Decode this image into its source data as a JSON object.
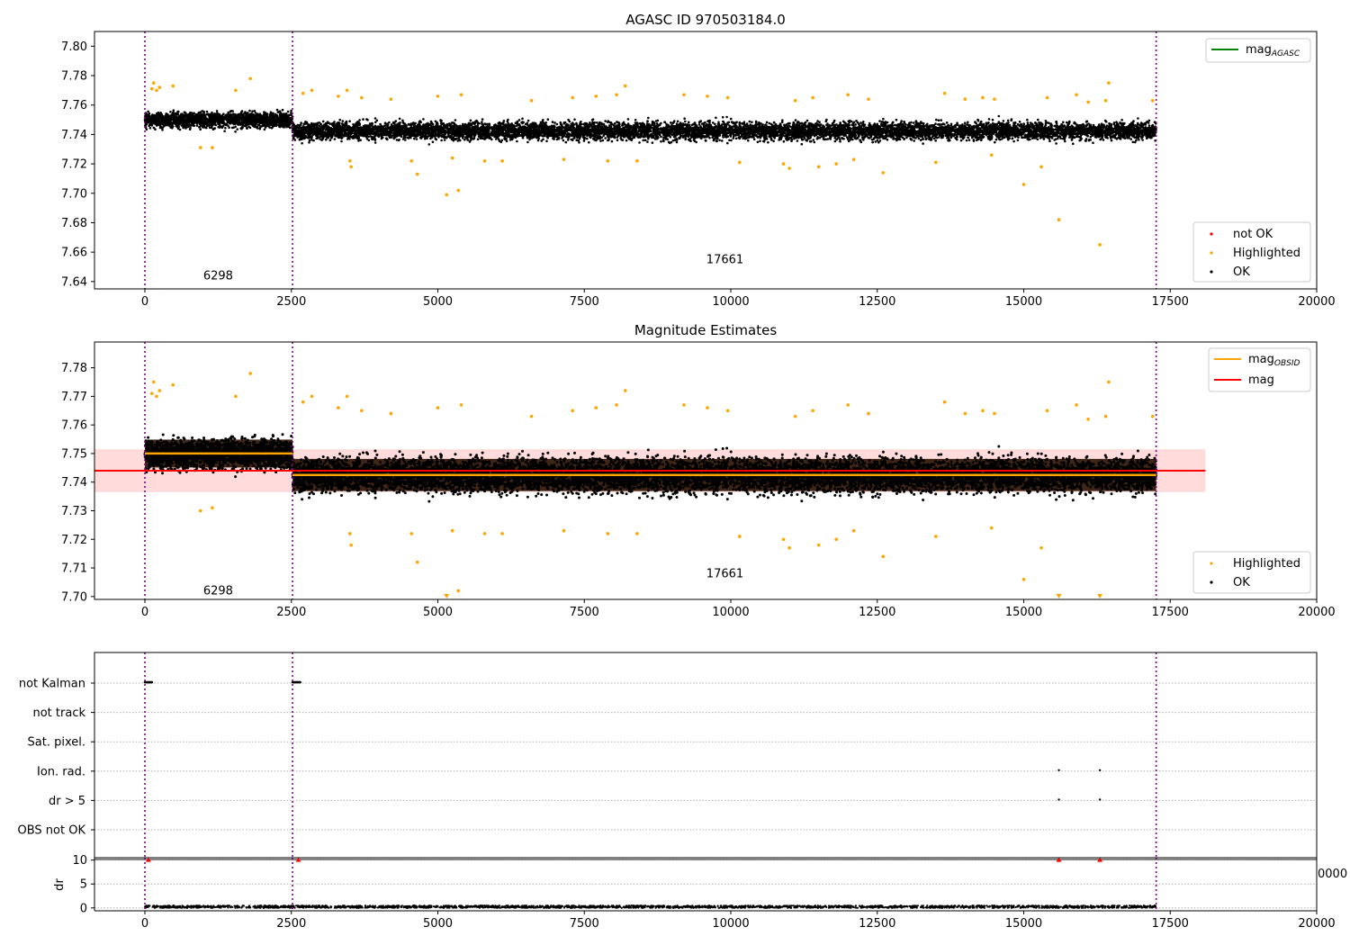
{
  "chart_data": [
    {
      "type": "scatter",
      "title": "AGASC ID 970503184.0",
      "xlim": [
        -860,
        20000
      ],
      "ylim": [
        7.635,
        7.81
      ],
      "xticks": [
        0,
        2500,
        5000,
        7500,
        10000,
        12500,
        15000,
        17500,
        20000
      ],
      "xtick_labels": [
        "0",
        "2500",
        "5000",
        "7500",
        "10000",
        "12500",
        "15000",
        "17500",
        "20000"
      ],
      "yticks": [
        7.64,
        7.66,
        7.68,
        7.7,
        7.72,
        7.74,
        7.76,
        7.78,
        7.8
      ],
      "ytick_labels": [
        "7.64",
        "7.66",
        "7.68",
        "7.70",
        "7.72",
        "7.74",
        "7.76",
        "7.78",
        "7.80"
      ],
      "vlines": [
        0,
        2520,
        17260
      ],
      "vline_color": "#800080",
      "obsid_labels": [
        {
          "text": "6298",
          "x": 1250,
          "y": 7.644
        },
        {
          "text": "17661",
          "x": 9900,
          "y": 7.655
        }
      ],
      "legend_upper": {
        "placement": "upper right",
        "entries": [
          {
            "label": "mag",
            "sub": "AGASC",
            "color": "#008000"
          }
        ]
      },
      "legend_lower": {
        "placement": "lower right",
        "entries": [
          {
            "label": "not OK",
            "color": "#ff0000"
          },
          {
            "label": "Highlighted",
            "color": "#ffa500"
          },
          {
            "label": "OK",
            "color": "#000000"
          }
        ]
      },
      "series": [
        {
          "name": "OK",
          "color": "#000000",
          "segments": [
            {
              "x": [
                0,
                2520
              ],
              "center": 7.75,
              "spread": 0.0065
            },
            {
              "x": [
                2520,
                17260
              ],
              "center": 7.7425,
              "spread": 0.0075
            }
          ]
        },
        {
          "name": "Highlighted",
          "color": "#ffa500",
          "points": [
            [
              120,
              7.771
            ],
            [
              150,
              7.775
            ],
            [
              200,
              7.77
            ],
            [
              250,
              7.772
            ],
            [
              480,
              7.773
            ],
            [
              950,
              7.731
            ],
            [
              1150,
              7.731
            ],
            [
              1550,
              7.77
            ],
            [
              1800,
              7.778
            ],
            [
              2700,
              7.768
            ],
            [
              2850,
              7.77
            ],
            [
              3300,
              7.766
            ],
            [
              3450,
              7.77
            ],
            [
              3500,
              7.722
            ],
            [
              3520,
              7.718
            ],
            [
              3700,
              7.765
            ],
            [
              4200,
              7.764
            ],
            [
              4550,
              7.722
            ],
            [
              4650,
              7.713
            ],
            [
              5000,
              7.766
            ],
            [
              5150,
              7.699
            ],
            [
              5250,
              7.724
            ],
            [
              5350,
              7.702
            ],
            [
              5400,
              7.767
            ],
            [
              5800,
              7.722
            ],
            [
              6100,
              7.722
            ],
            [
              6600,
              7.763
            ],
            [
              7150,
              7.723
            ],
            [
              7300,
              7.765
            ],
            [
              7700,
              7.766
            ],
            [
              7900,
              7.722
            ],
            [
              8050,
              7.767
            ],
            [
              8200,
              7.773
            ],
            [
              8400,
              7.722
            ],
            [
              9200,
              7.767
            ],
            [
              9600,
              7.766
            ],
            [
              9950,
              7.765
            ],
            [
              10150,
              7.721
            ],
            [
              10900,
              7.72
            ],
            [
              11000,
              7.717
            ],
            [
              11100,
              7.763
            ],
            [
              11400,
              7.765
            ],
            [
              11500,
              7.718
            ],
            [
              11800,
              7.72
            ],
            [
              12000,
              7.767
            ],
            [
              12100,
              7.723
            ],
            [
              12350,
              7.764
            ],
            [
              12600,
              7.714
            ],
            [
              13500,
              7.721
            ],
            [
              13650,
              7.768
            ],
            [
              14000,
              7.764
            ],
            [
              14300,
              7.765
            ],
            [
              14450,
              7.726
            ],
            [
              14500,
              7.764
            ],
            [
              15000,
              7.706
            ],
            [
              15300,
              7.718
            ],
            [
              15400,
              7.765
            ],
            [
              15600,
              7.682
            ],
            [
              15900,
              7.767
            ],
            [
              16100,
              7.762
            ],
            [
              16300,
              7.665
            ],
            [
              16400,
              7.763
            ],
            [
              16450,
              7.775
            ],
            [
              17200,
              7.763
            ]
          ]
        }
      ]
    },
    {
      "type": "scatter",
      "title": "Magnitude Estimates",
      "xlim": [
        -860,
        20000
      ],
      "ylim": [
        7.699,
        7.789
      ],
      "xticks": [
        0,
        2500,
        5000,
        7500,
        10000,
        12500,
        15000,
        17500,
        20000
      ],
      "xtick_labels": [
        "0",
        "2500",
        "5000",
        "7500",
        "10000",
        "12500",
        "15000",
        "17500",
        "20000"
      ],
      "yticks": [
        7.7,
        7.71,
        7.72,
        7.73,
        7.74,
        7.75,
        7.76,
        7.77,
        7.78
      ],
      "ytick_labels": [
        "7.70",
        "7.71",
        "7.72",
        "7.73",
        "7.74",
        "7.75",
        "7.76",
        "7.77",
        "7.78"
      ],
      "vlines": [
        0,
        2520,
        17260
      ],
      "obsid_labels": [
        {
          "text": "6298",
          "x": 1250,
          "y": 7.702
        },
        {
          "text": "17661",
          "x": 9900,
          "y": 7.708
        }
      ],
      "mag_line": {
        "value": 7.744,
        "x": [
          -860,
          18100
        ],
        "color": "#ff0000",
        "band": [
          7.7365,
          7.7515
        ],
        "band_color": "#ffcccc"
      },
      "mag_obsid_lines": [
        {
          "x": [
            0,
            2520
          ],
          "value": 7.75
        },
        {
          "x": [
            2520,
            17260
          ],
          "value": 7.7425
        }
      ],
      "mag_obsid_color": "#ffa500",
      "dense_color": "#2a1100",
      "legend_upper": {
        "placement": "upper right",
        "entries": [
          {
            "label": "mag",
            "sub": "OBSID",
            "color": "#ffa500"
          },
          {
            "label": "mag",
            "sub": "",
            "color": "#ff0000"
          }
        ]
      },
      "legend_lower": {
        "placement": "lower right",
        "entries": [
          {
            "label": "Highlighted",
            "color": "#ffa500"
          },
          {
            "label": "OK",
            "color": "#000000"
          }
        ]
      },
      "series": [
        {
          "name": "OK",
          "color": "#000000",
          "segments": [
            {
              "x": [
                0,
                2520
              ],
              "center": 7.75,
              "spread": 0.0065
            },
            {
              "x": [
                2520,
                17260
              ],
              "center": 7.7425,
              "spread": 0.0075
            }
          ]
        },
        {
          "name": "Highlighted",
          "color": "#ffa500",
          "points": [
            [
              120,
              7.771
            ],
            [
              150,
              7.775
            ],
            [
              200,
              7.77
            ],
            [
              250,
              7.772
            ],
            [
              480,
              7.774
            ],
            [
              950,
              7.73
            ],
            [
              1150,
              7.731
            ],
            [
              1550,
              7.77
            ],
            [
              1800,
              7.778
            ],
            [
              2700,
              7.768
            ],
            [
              2850,
              7.77
            ],
            [
              3300,
              7.766
            ],
            [
              3450,
              7.77
            ],
            [
              3500,
              7.722
            ],
            [
              3520,
              7.718
            ],
            [
              3700,
              7.765
            ],
            [
              4200,
              7.764
            ],
            [
              4550,
              7.722
            ],
            [
              4650,
              7.712
            ],
            [
              5000,
              7.766
            ],
            [
              5250,
              7.723
            ],
            [
              5350,
              7.702
            ],
            [
              5400,
              7.767
            ],
            [
              5800,
              7.722
            ],
            [
              6100,
              7.722
            ],
            [
              6600,
              7.763
            ],
            [
              7150,
              7.723
            ],
            [
              7300,
              7.765
            ],
            [
              7700,
              7.766
            ],
            [
              7900,
              7.722
            ],
            [
              8050,
              7.767
            ],
            [
              8200,
              7.772
            ],
            [
              8400,
              7.722
            ],
            [
              9200,
              7.767
            ],
            [
              9600,
              7.766
            ],
            [
              9950,
              7.765
            ],
            [
              10150,
              7.721
            ],
            [
              10900,
              7.72
            ],
            [
              11000,
              7.717
            ],
            [
              11100,
              7.763
            ],
            [
              11400,
              7.765
            ],
            [
              11500,
              7.718
            ],
            [
              11800,
              7.72
            ],
            [
              12000,
              7.767
            ],
            [
              12100,
              7.723
            ],
            [
              12350,
              7.764
            ],
            [
              12600,
              7.714
            ],
            [
              13500,
              7.721
            ],
            [
              13650,
              7.768
            ],
            [
              14000,
              7.764
            ],
            [
              14300,
              7.765
            ],
            [
              14450,
              7.724
            ],
            [
              14500,
              7.764
            ],
            [
              15000,
              7.706
            ],
            [
              15300,
              7.717
            ],
            [
              15400,
              7.765
            ],
            [
              15900,
              7.767
            ],
            [
              16100,
              7.762
            ],
            [
              16400,
              7.763
            ],
            [
              16450,
              7.775
            ],
            [
              17200,
              7.763
            ]
          ]
        },
        {
          "name": "Highlighted (off-scale)",
          "color": "#ffa500",
          "marker": "down-triangle",
          "points": [
            [
              5150,
              7.7
            ],
            [
              15600,
              7.7
            ],
            [
              16300,
              7.7
            ]
          ]
        }
      ]
    },
    {
      "type": "scatter",
      "xlim": [
        -860,
        20000
      ],
      "categories": [
        "not Kalman",
        "not track",
        "Sat. pixel.",
        "Ion. rad.",
        "dr > 5",
        "OBS not OK"
      ],
      "vlines": [
        0,
        2520,
        17260
      ],
      "flag_points": [
        {
          "category": "not Kalman",
          "x": [
            0,
            120
          ]
        },
        {
          "category": "not Kalman",
          "x": [
            2520,
            2660
          ]
        },
        {
          "category": "Ion. rad.",
          "x": [
            15600,
            16300
          ]
        },
        {
          "category": "dr > 5",
          "x": [
            15600,
            16300
          ]
        }
      ]
    },
    {
      "type": "scatter",
      "xlim": [
        -860,
        20000
      ],
      "ylim": [
        -0.6,
        10.5
      ],
      "ylabel": "dr",
      "yticks": [
        0,
        5,
        10
      ],
      "ytick_labels": [
        "0",
        "5",
        "10"
      ],
      "xticks": [
        0,
        2500,
        5000,
        7500,
        10000,
        12500,
        15000,
        17500,
        20000
      ],
      "xtick_labels": [
        "0",
        "2500",
        "5000",
        "7500",
        "10000",
        "12500",
        "15000",
        "17500",
        "20000"
      ],
      "stray_label": "0000",
      "vlines": [
        0,
        2520,
        17260
      ],
      "dr_values": {
        "x": [
          0,
          17260
        ],
        "value": 0.25
      },
      "off_scale_markers": {
        "color": "#ff0000",
        "value": 10,
        "x": [
          60,
          2620,
          15600,
          16300
        ]
      }
    }
  ]
}
